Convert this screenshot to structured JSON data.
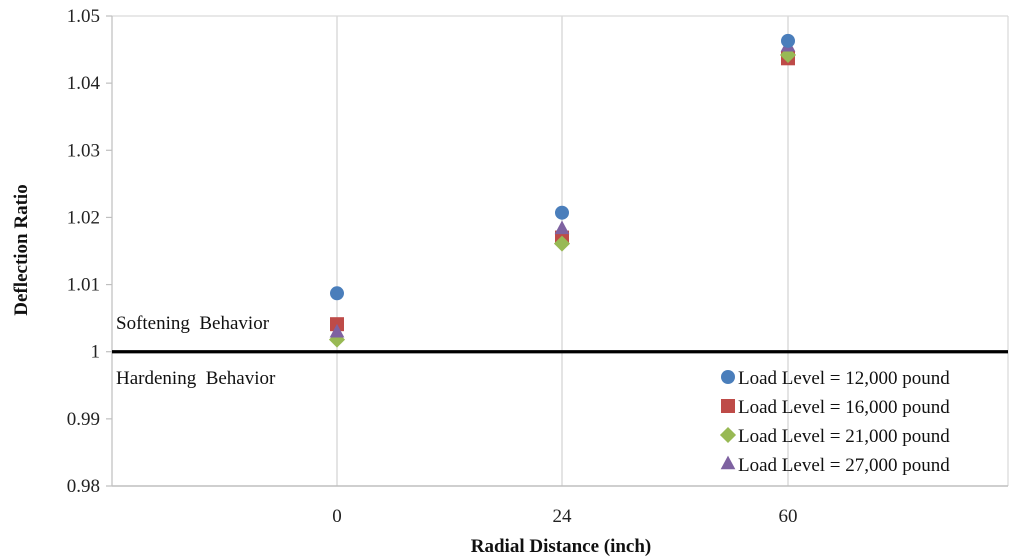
{
  "chart_data": {
    "type": "scatter",
    "title": "",
    "xlabel": "Radial Distance (inch)",
    "ylabel": "Deflection Ratio",
    "categories": [
      "0",
      "24",
      "60"
    ],
    "ylim": [
      0.98,
      1.05
    ],
    "yticks": [
      "0.98",
      "0.99",
      "1",
      "1.01",
      "1.02",
      "1.03",
      "1.04",
      "1.05"
    ],
    "grid": "vertical",
    "reference_line": 1,
    "annotations": {
      "above": "Softening  Behavior",
      "below": "Hardening  Behavior"
    },
    "legend_position": "bottom-right",
    "series": [
      {
        "name": "Load Level = 12,000 pound",
        "marker": "circle",
        "color": "#4a7ebb",
        "values": [
          1.0087,
          1.0207,
          1.0463
        ]
      },
      {
        "name": "Load Level = 16,000 pound",
        "marker": "square",
        "color": "#be4b48",
        "values": [
          1.0041,
          1.017,
          1.0437
        ]
      },
      {
        "name": "Load Level = 21,000 pound",
        "marker": "diamond",
        "color": "#98b954",
        "values": [
          1.0018,
          1.0161,
          1.0442
        ]
      },
      {
        "name": "Load Level = 27,000 pound",
        "marker": "triangle",
        "color": "#7e62a1",
        "values": [
          1.0029,
          1.0183,
          1.0455
        ]
      }
    ]
  }
}
